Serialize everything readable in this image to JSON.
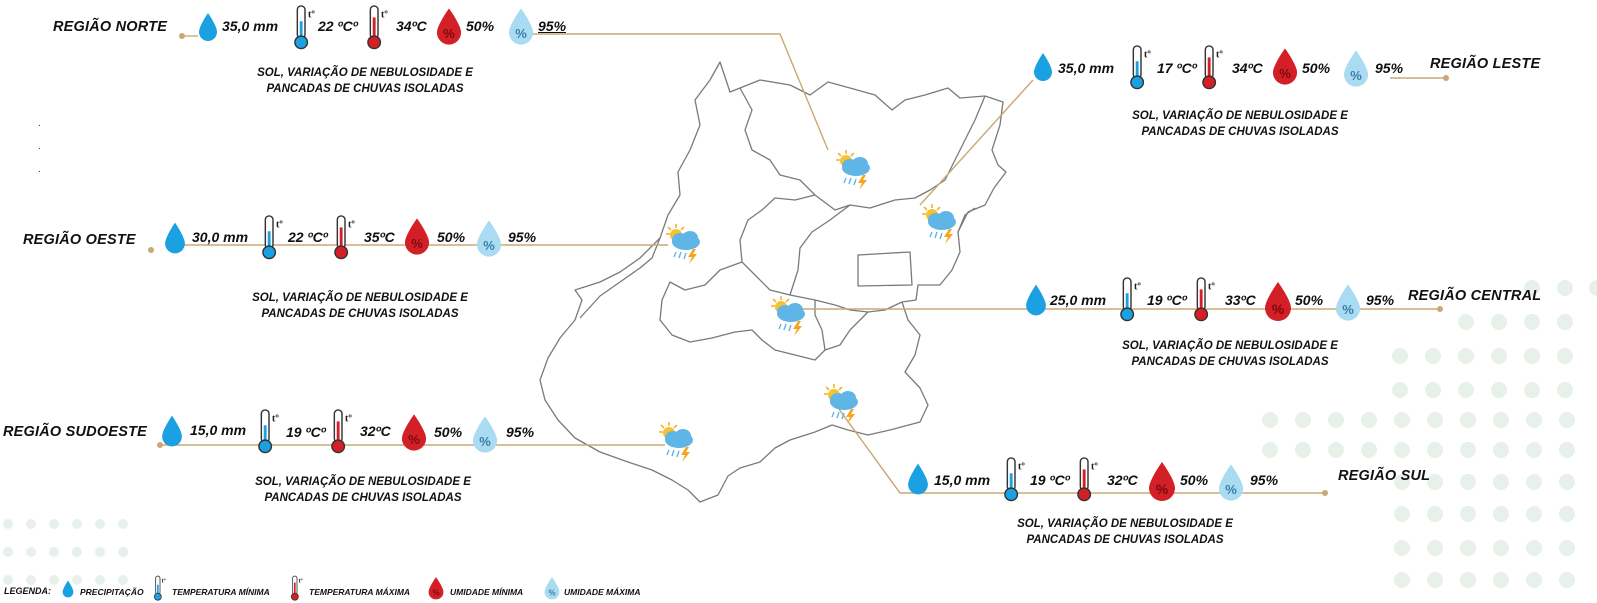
{
  "regions": {
    "norte": {
      "name": "REGIÃO NORTE",
      "precip": "35,0 mm",
      "tmin": "22 ºCº",
      "tmax": "34ºC",
      "umin": "50%",
      "umax": "95%",
      "desc1": "SOL, VARIAÇÃO DE NEBULOSIDADE E",
      "desc2": "PANCADAS DE CHUVAS ISOLADAS"
    },
    "leste": {
      "name": "REGIÃO LESTE",
      "precip": "35,0 mm",
      "tmin": "17 ºCº",
      "tmax": "34ºC",
      "umin": "50%",
      "umax": "95%",
      "desc1": "SOL, VARIAÇÃO DE NEBULOSIDADE E",
      "desc2": "PANCADAS DE CHUVAS ISOLADAS"
    },
    "oeste": {
      "name": "REGIÃO OESTE",
      "precip": "30,0 mm",
      "tmin": "22 ºCº",
      "tmax": "35ºC",
      "umin": "50%",
      "umax": "95%",
      "desc1": "SOL, VARIAÇÃO DE NEBULOSIDADE E",
      "desc2": "PANCADAS DE CHUVAS ISOLADAS"
    },
    "central": {
      "name": "REGIÃO CENTRAL",
      "precip": "25,0 mm",
      "tmin": "19 ºCº",
      "tmax": "33ºC",
      "umin": "50%",
      "umax": "95%",
      "desc1": "SOL, VARIAÇÃO DE NEBULOSIDADE E",
      "desc2": "PANCADAS DE CHUVAS ISOLADAS"
    },
    "sudoeste": {
      "name": "REGIÃO SUDOESTE",
      "precip": "15,0 mm",
      "tmin": "19 ºCº",
      "tmax": "32ºC",
      "umin": "50%",
      "umax": "95%",
      "desc1": "SOL, VARIAÇÃO DE NEBULOSIDADE E",
      "desc2": "PANCADAS DE CHUVAS ISOLADAS"
    },
    "sul": {
      "name": "REGIÃO SUL",
      "precip": "15,0 mm",
      "tmin": "19 ºCº",
      "tmax": "32ºC",
      "umin": "50%",
      "umax": "95%",
      "desc1": "SOL, VARIAÇÃO DE NEBULOSIDADE E",
      "desc2": "PANCADAS DE CHUVAS ISOLADAS"
    }
  },
  "legend": {
    "title": "LEGENDA:",
    "precip": "PRECIPITAÇÃO",
    "tmin": "TEMPERATURA  MÍNIMA",
    "tmax": "TEMPERATURA  MÁXIMA",
    "umin": "UMIDADE  MÍNIMA",
    "umax": "UMIDADE  MÁXIMA"
  },
  "icon_glyphs": {
    "thermo": "tº",
    "humidity": "%"
  },
  "icon_names": [
    "raindrop-icon",
    "thermometer-min-icon",
    "thermometer-max-icon",
    "humidity-min-icon",
    "humidity-max-icon",
    "sun-cloud-storm-icon"
  ],
  "colors": {
    "connector": "#c9a873",
    "drop": "#1ba1e2",
    "max": "#d32027",
    "umax": "#8ecfee",
    "dots": "#e6efe8",
    "map_border": "#777777"
  }
}
